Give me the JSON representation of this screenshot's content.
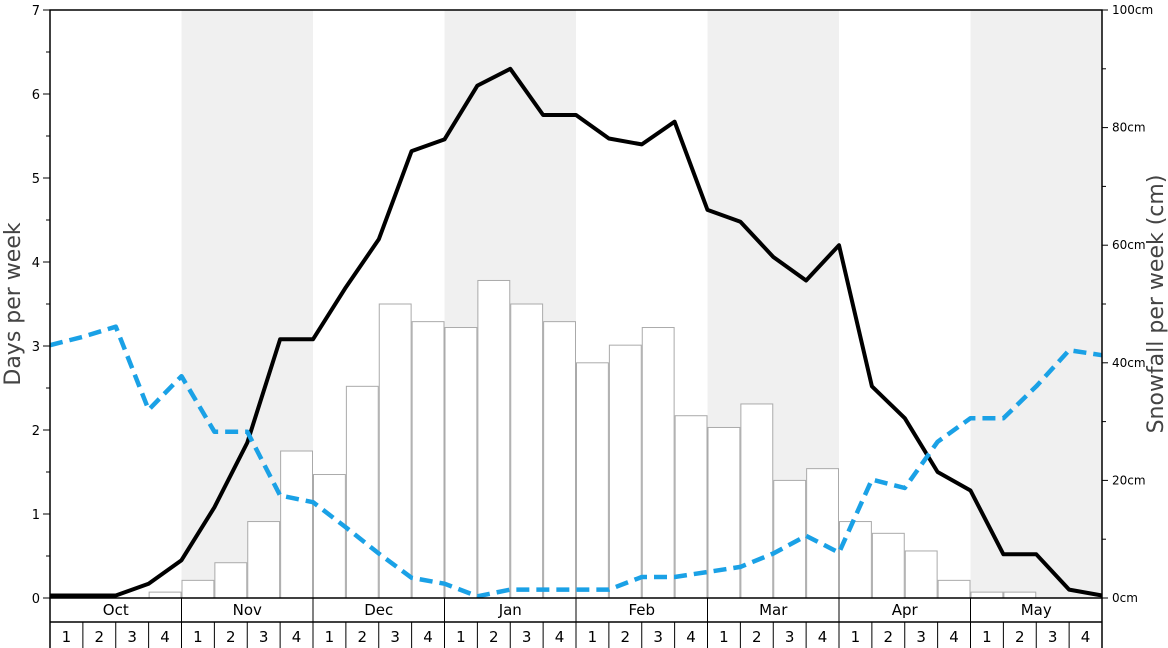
{
  "chart_data": {
    "type": "bar",
    "title": "",
    "ylabel_left": "Days per week",
    "ylabel_right": "Snowfall per week (cm)",
    "ylim_left": [
      0,
      7
    ],
    "ylim_right": [
      0,
      100
    ],
    "left_ticks": [
      "0",
      "1",
      "2",
      "3",
      "4",
      "5",
      "6",
      "7"
    ],
    "right_ticks": [
      "0cm",
      "20cm",
      "40cm",
      "60cm",
      "80cm",
      "100cm"
    ],
    "months": [
      "Oct",
      "Nov",
      "Dec",
      "Jan",
      "Feb",
      "Mar",
      "Apr",
      "May"
    ],
    "weeks": [
      "1",
      "2",
      "3",
      "4"
    ],
    "shaded_months": [
      "Nov",
      "Jan",
      "Mar",
      "May"
    ],
    "grid": false,
    "snowfall_cm": [
      0,
      0,
      0,
      1,
      3,
      6,
      13,
      25,
      21,
      36,
      50,
      47,
      46,
      54,
      50,
      47,
      40,
      43,
      46,
      31,
      29,
      33,
      20,
      22,
      13,
      11,
      8,
      3,
      1,
      1,
      0,
      0
    ],
    "series": [
      {
        "style": "solid-black",
        "axis": "left",
        "values": [
          0.03,
          0.03,
          0.03,
          0.17,
          0.45,
          1.08,
          1.85,
          3.08,
          3.08,
          3.7,
          4.27,
          5.32,
          5.46,
          6.1,
          6.3,
          5.75,
          5.75,
          5.47,
          5.4,
          5.67,
          4.62,
          4.48,
          4.06,
          3.78,
          4.2,
          2.52,
          2.14,
          1.5,
          1.28,
          0.52,
          0.52,
          0.1,
          0.03
        ]
      },
      {
        "style": "dashed-blue",
        "axis": "left",
        "values": [
          3.01,
          3.11,
          3.23,
          2.24,
          2.64,
          1.98,
          1.98,
          1.22,
          1.14,
          0.84,
          0.53,
          0.24,
          0.17,
          0.02,
          0.1,
          0.1,
          0.1,
          0.1,
          0.25,
          0.25,
          0.31,
          0.37,
          0.53,
          0.74,
          0.54,
          1.41,
          1.31,
          1.86,
          2.14,
          2.14,
          2.52,
          2.95,
          2.89
        ]
      }
    ],
    "colors": {
      "shade": "#f0f0f0",
      "bar_fill": "#ffffff",
      "bar_stroke": "#aaaaaa",
      "solid_line": "#000000",
      "dashed_line": "#1aa1e6"
    }
  }
}
